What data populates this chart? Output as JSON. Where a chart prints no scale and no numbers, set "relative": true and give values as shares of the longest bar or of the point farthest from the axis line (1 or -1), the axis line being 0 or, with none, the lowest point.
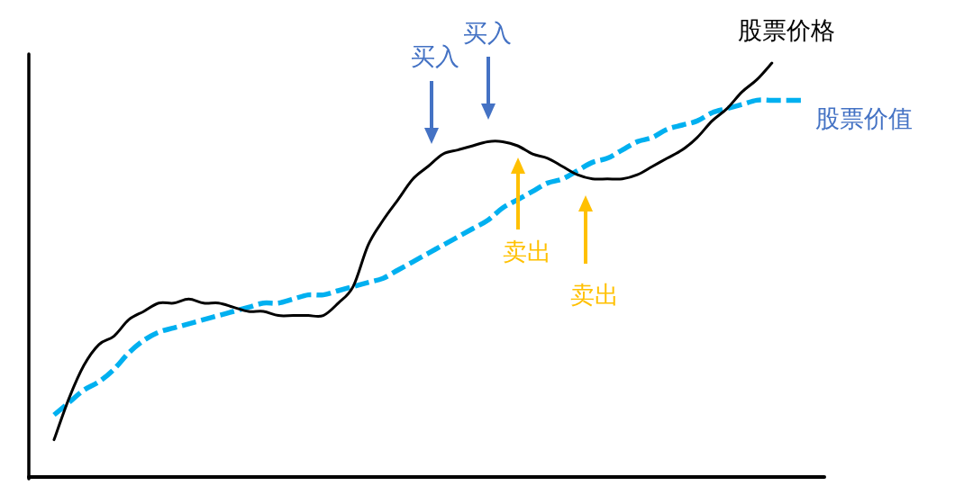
{
  "chart_data": {
    "type": "line",
    "relative": true,
    "categories": [
      null,
      null,
      null,
      null,
      null,
      null,
      null,
      null,
      null,
      null,
      null,
      null,
      null,
      null,
      null,
      null,
      null,
      null,
      null,
      null,
      null,
      null,
      null,
      null,
      null,
      null,
      null,
      null,
      null,
      null,
      null,
      null,
      null,
      null,
      null,
      null,
      null,
      null,
      null,
      null,
      null,
      null,
      null,
      null,
      null,
      null,
      null,
      null,
      null,
      null,
      null
    ],
    "series": [
      {
        "name": "股票价值",
        "color": "#00b0f0",
        "line_style": "dashed",
        "values": [
          0.15,
          0.18,
          0.21,
          0.23,
          0.26,
          0.3,
          0.33,
          0.35,
          0.36,
          0.37,
          0.38,
          0.39,
          0.4,
          0.41,
          0.42,
          0.42,
          0.43,
          0.44,
          0.44,
          0.45,
          0.46,
          0.47,
          0.48,
          0.5,
          0.52,
          0.54,
          0.56,
          0.58,
          0.6,
          0.62,
          0.65,
          0.67,
          0.69,
          0.71,
          0.72,
          0.74,
          0.76,
          0.77,
          0.79,
          0.81,
          0.82,
          0.84,
          0.85,
          0.86,
          0.88,
          0.89,
          0.9,
          0.91,
          0.91,
          0.91,
          0.91
        ]
      },
      {
        "name": "股票价格",
        "color": "#000000",
        "line_style": "solid",
        "values": [
          0.09,
          0.19,
          0.27,
          0.32,
          0.34,
          0.38,
          0.4,
          0.42,
          0.42,
          0.43,
          0.42,
          0.42,
          0.41,
          0.4,
          0.4,
          0.39,
          0.39,
          0.39,
          0.39,
          0.42,
          0.46,
          0.56,
          0.62,
          0.67,
          0.72,
          0.75,
          0.78,
          0.79,
          0.8,
          0.81,
          0.81,
          0.8,
          0.78,
          0.77,
          0.75,
          0.73,
          0.72,
          0.72,
          0.72,
          0.73,
          0.75,
          0.77,
          0.79,
          0.82,
          0.86,
          0.89,
          0.93,
          0.96,
          1,
          null,
          null
        ]
      }
    ],
    "annotations": [
      "买入",
      "买入",
      "卖出",
      "卖出"
    ]
  }
}
